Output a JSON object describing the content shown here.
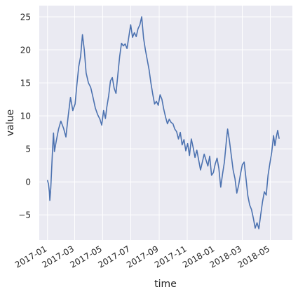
{
  "chart_data": {
    "type": "line",
    "title": "",
    "xlabel": "time",
    "ylabel": "value",
    "x_tick_labels": [
      "2017-01",
      "2017-03",
      "2017-05",
      "2017-07",
      "2017-09",
      "2017-11",
      "2018-01",
      "2018-03",
      "2018-05"
    ],
    "y_ticks": [
      -5,
      0,
      5,
      10,
      15,
      20,
      25
    ],
    "x_range": [
      "2016-12-14",
      "2018-06-18"
    ],
    "ylim": [
      -8.8,
      26.7
    ],
    "grid": true,
    "background_color": "#eaeaf2",
    "grid_color": "#ffffff",
    "line_color": "#4c72b0",
    "series": [
      {
        "values": [
          [
            "2017-01-01",
            0.2
          ],
          [
            "2017-01-03",
            -0.3
          ],
          [
            "2017-01-05",
            -1.5
          ],
          [
            "2017-01-06",
            -2.8
          ],
          [
            "2017-01-08",
            -1.0
          ],
          [
            "2017-01-10",
            2.0
          ],
          [
            "2017-01-12",
            5.0
          ],
          [
            "2017-01-14",
            7.4
          ],
          [
            "2017-01-16",
            4.6
          ],
          [
            "2017-01-20",
            6.2
          ],
          [
            "2017-01-25",
            8.0
          ],
          [
            "2017-01-30",
            9.2
          ],
          [
            "2017-02-05",
            8.1
          ],
          [
            "2017-02-10",
            6.8
          ],
          [
            "2017-02-15",
            10.0
          ],
          [
            "2017-02-20",
            12.8
          ],
          [
            "2017-02-25",
            10.8
          ],
          [
            "2017-03-02",
            11.8
          ],
          [
            "2017-03-06",
            14.8
          ],
          [
            "2017-03-10",
            17.5
          ],
          [
            "2017-03-14",
            19.0
          ],
          [
            "2017-03-18",
            22.3
          ],
          [
            "2017-03-22",
            20.0
          ],
          [
            "2017-03-26",
            16.5
          ],
          [
            "2017-03-31",
            15.0
          ],
          [
            "2017-04-05",
            14.3
          ],
          [
            "2017-04-10",
            12.8
          ],
          [
            "2017-04-15",
            11.2
          ],
          [
            "2017-04-20",
            10.2
          ],
          [
            "2017-04-25",
            9.5
          ],
          [
            "2017-04-29",
            8.6
          ],
          [
            "2017-05-03",
            10.8
          ],
          [
            "2017-05-07",
            9.6
          ],
          [
            "2017-05-10",
            11.3
          ],
          [
            "2017-05-14",
            13.0
          ],
          [
            "2017-05-18",
            15.3
          ],
          [
            "2017-05-22",
            15.8
          ],
          [
            "2017-05-26",
            14.2
          ],
          [
            "2017-05-30",
            13.4
          ],
          [
            "2017-06-03",
            16.2
          ],
          [
            "2017-06-07",
            19.0
          ],
          [
            "2017-06-11",
            21.0
          ],
          [
            "2017-06-15",
            20.6
          ],
          [
            "2017-06-19",
            20.9
          ],
          [
            "2017-06-23",
            20.2
          ],
          [
            "2017-06-27",
            22.0
          ],
          [
            "2017-07-01",
            23.8
          ],
          [
            "2017-07-05",
            21.9
          ],
          [
            "2017-07-09",
            22.6
          ],
          [
            "2017-07-13",
            22.0
          ],
          [
            "2017-07-17",
            23.2
          ],
          [
            "2017-07-21",
            23.8
          ],
          [
            "2017-07-25",
            25.0
          ],
          [
            "2017-07-29",
            21.8
          ],
          [
            "2017-08-02",
            20.0
          ],
          [
            "2017-08-06",
            18.5
          ],
          [
            "2017-08-10",
            17.0
          ],
          [
            "2017-08-14",
            15.0
          ],
          [
            "2017-08-18",
            13.3
          ],
          [
            "2017-08-22",
            11.8
          ],
          [
            "2017-08-26",
            12.2
          ],
          [
            "2017-08-30",
            11.6
          ],
          [
            "2017-09-03",
            13.2
          ],
          [
            "2017-09-07",
            12.5
          ],
          [
            "2017-09-11",
            11.0
          ],
          [
            "2017-09-15",
            9.8
          ],
          [
            "2017-09-19",
            8.8
          ],
          [
            "2017-09-23",
            9.5
          ],
          [
            "2017-09-27",
            9.0
          ],
          [
            "2017-10-01",
            8.8
          ],
          [
            "2017-10-05",
            8.0
          ],
          [
            "2017-10-09",
            7.6
          ],
          [
            "2017-10-13",
            6.5
          ],
          [
            "2017-10-17",
            7.5
          ],
          [
            "2017-10-21",
            5.6
          ],
          [
            "2017-10-25",
            6.4
          ],
          [
            "2017-10-29",
            4.7
          ],
          [
            "2017-11-02",
            5.8
          ],
          [
            "2017-11-06",
            4.0
          ],
          [
            "2017-11-10",
            6.5
          ],
          [
            "2017-11-14",
            5.2
          ],
          [
            "2017-11-18",
            3.7
          ],
          [
            "2017-11-22",
            4.8
          ],
          [
            "2017-11-26",
            3.3
          ],
          [
            "2017-11-30",
            1.8
          ],
          [
            "2017-12-04",
            3.0
          ],
          [
            "2017-12-08",
            4.2
          ],
          [
            "2017-12-12",
            3.3
          ],
          [
            "2017-12-16",
            2.4
          ],
          [
            "2017-12-20",
            3.9
          ],
          [
            "2017-12-24",
            1.0
          ],
          [
            "2017-12-28",
            1.4
          ],
          [
            "2018-01-01",
            2.7
          ],
          [
            "2018-01-05",
            3.6
          ],
          [
            "2018-01-09",
            2.0
          ],
          [
            "2018-01-13",
            -0.8
          ],
          [
            "2018-01-17",
            1.2
          ],
          [
            "2018-01-21",
            3.0
          ],
          [
            "2018-01-25",
            6.0
          ],
          [
            "2018-01-28",
            8.0
          ],
          [
            "2018-02-01",
            6.2
          ],
          [
            "2018-02-05",
            4.0
          ],
          [
            "2018-02-09",
            1.8
          ],
          [
            "2018-02-13",
            0.5
          ],
          [
            "2018-02-17",
            -1.7
          ],
          [
            "2018-02-21",
            -0.5
          ],
          [
            "2018-02-25",
            1.2
          ],
          [
            "2018-03-01",
            2.6
          ],
          [
            "2018-03-05",
            3.0
          ],
          [
            "2018-03-09",
            0.5
          ],
          [
            "2018-03-13",
            -2.1
          ],
          [
            "2018-03-17",
            -3.5
          ],
          [
            "2018-03-21",
            -4.2
          ],
          [
            "2018-03-25",
            -5.5
          ],
          [
            "2018-03-29",
            -7.0
          ],
          [
            "2018-04-02",
            -6.2
          ],
          [
            "2018-04-06",
            -7.1
          ],
          [
            "2018-04-10",
            -5.0
          ],
          [
            "2018-04-14",
            -3.0
          ],
          [
            "2018-04-18",
            -1.5
          ],
          [
            "2018-04-22",
            -2.0
          ],
          [
            "2018-04-26",
            1.0
          ],
          [
            "2018-04-30",
            2.8
          ],
          [
            "2018-05-04",
            4.5
          ],
          [
            "2018-05-08",
            7.0
          ],
          [
            "2018-05-11",
            5.5
          ],
          [
            "2018-05-14",
            6.8
          ],
          [
            "2018-05-17",
            7.8
          ],
          [
            "2018-05-20",
            6.6
          ]
        ]
      }
    ]
  }
}
